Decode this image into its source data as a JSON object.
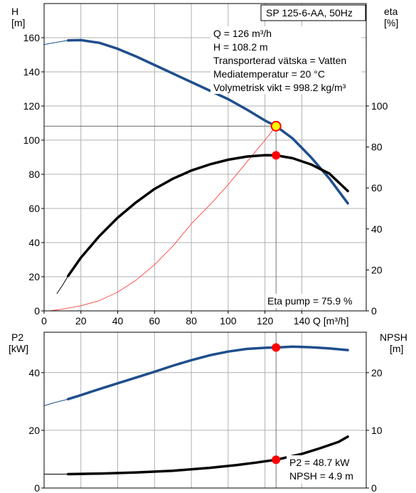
{
  "chart_data": [
    {
      "type": "line",
      "title": "SP 125-6-AA, 50Hz",
      "xlabel": "Q [m³/h]",
      "ylabel": [
        "H",
        "[m]"
      ],
      "y2label": [
        "eta",
        "[%]"
      ],
      "xlim": [
        0,
        175
      ],
      "ylim": [
        0,
        180
      ],
      "y2lim": [
        0,
        150
      ],
      "xticks": [
        0,
        20,
        40,
        60,
        80,
        100,
        120,
        140
      ],
      "yticks": [
        0,
        20,
        40,
        60,
        80,
        100,
        120,
        140,
        160
      ],
      "y2ticks": [
        0,
        20,
        40,
        60,
        80,
        100
      ],
      "grid": true,
      "info_lines": [
        "Q = 126 m³/h",
        "H = 108.2 m",
        "Transporterad vätska = Vatten",
        "Mediatemperatur = 20 °C",
        "Volymetrisk vikt = 998.2 kg/m³"
      ],
      "eta_label": "Eta pump = 75.9 %",
      "duty_point": {
        "Q": 126,
        "H": 108.2,
        "eta": 75.9
      },
      "colors": {
        "head": "#1f4e8c",
        "eta": "#000000",
        "system": "#ff4040",
        "marker": "#ff0000",
        "marker_yellow": "#ffff00",
        "grid": "#b0b0b0"
      },
      "series": [
        {
          "key": "head_thin",
          "axis": "left",
          "points": [
            [
              0,
              156
            ],
            [
              5,
              157
            ],
            [
              13,
              158.4
            ]
          ]
        },
        {
          "key": "head",
          "axis": "left",
          "points": [
            [
              13,
              158.4
            ],
            [
              20,
              158.6
            ],
            [
              30,
              157
            ],
            [
              40,
              153.5
            ],
            [
              50,
              149
            ],
            [
              60,
              144
            ],
            [
              70,
              139
            ],
            [
              80,
              134
            ],
            [
              90,
              129
            ],
            [
              100,
              124
            ],
            [
              110,
              118
            ],
            [
              120,
              111.5
            ],
            [
              126,
              108.2
            ],
            [
              135,
              101
            ],
            [
              145,
              90
            ],
            [
              155,
              77.5
            ],
            [
              165,
              63
            ]
          ]
        },
        {
          "key": "eta_thin",
          "axis": "right",
          "points": [
            [
              7,
              8.5
            ],
            [
              10,
              12.5
            ],
            [
              13,
              17
            ]
          ]
        },
        {
          "key": "eta",
          "axis": "right",
          "points": [
            [
              13,
              17
            ],
            [
              20,
              26
            ],
            [
              30,
              36.5
            ],
            [
              40,
              45.5
            ],
            [
              50,
              53
            ],
            [
              60,
              59.5
            ],
            [
              70,
              64.5
            ],
            [
              80,
              68.5
            ],
            [
              90,
              71.5
            ],
            [
              100,
              73.8
            ],
            [
              110,
              75.3
            ],
            [
              120,
              76
            ],
            [
              126,
              75.9
            ],
            [
              135,
              74.5
            ],
            [
              145,
              71.5
            ],
            [
              155,
              67
            ],
            [
              165,
              58.5
            ]
          ]
        },
        {
          "key": "system",
          "axis": "left",
          "points": [
            [
              3,
              0
            ],
            [
              10,
              1
            ],
            [
              20,
              3
            ],
            [
              30,
              6
            ],
            [
              40,
              11
            ],
            [
              50,
              18
            ],
            [
              60,
              27
            ],
            [
              70,
              38
            ],
            [
              80,
              51
            ],
            [
              90,
              62
            ],
            [
              100,
              74
            ],
            [
              110,
              87
            ],
            [
              120,
              100
            ],
            [
              126,
              108.2
            ]
          ]
        }
      ]
    },
    {
      "type": "line",
      "xlim": [
        0,
        175
      ],
      "ylim": [
        0,
        54
      ],
      "y2lim": [
        0,
        27
      ],
      "yticks": [
        0,
        20,
        40
      ],
      "y2ticks": [
        0,
        10,
        20
      ],
      "xticks": [
        0,
        20,
        40,
        60,
        80,
        100,
        120,
        140
      ],
      "ylabel": [
        "P2",
        "[kW]"
      ],
      "y2label": [
        "NPSH",
        "[m]"
      ],
      "grid": true,
      "info_lines": [
        "P2 = 48.7 kW",
        "NPSH = 4.9 m"
      ],
      "duty_point": {
        "Q": 126,
        "P2": 48.7,
        "NPSH": 4.9
      },
      "series": [
        {
          "key": "p2_thin",
          "axis": "left",
          "points": [
            [
              0,
              28.5
            ],
            [
              5,
              29.5
            ],
            [
              13,
              30.8
            ]
          ]
        },
        {
          "key": "p2",
          "axis": "left",
          "points": [
            [
              13,
              30.8
            ],
            [
              20,
              32.2
            ],
            [
              30,
              34.3
            ],
            [
              40,
              36.3
            ],
            [
              50,
              38.3
            ],
            [
              60,
              40.3
            ],
            [
              70,
              42.4
            ],
            [
              80,
              44.3
            ],
            [
              90,
              46
            ],
            [
              100,
              47.3
            ],
            [
              110,
              48.2
            ],
            [
              120,
              48.6
            ],
            [
              126,
              48.7
            ],
            [
              135,
              49
            ],
            [
              145,
              48.8
            ],
            [
              155,
              48.4
            ],
            [
              165,
              47.8
            ]
          ]
        },
        {
          "key": "npsh_thin",
          "axis": "right",
          "points": [
            [
              0,
              2.4
            ],
            [
              13,
              2.4
            ]
          ]
        },
        {
          "key": "npsh",
          "axis": "right",
          "points": [
            [
              13,
              2.4
            ],
            [
              30,
              2.5
            ],
            [
              50,
              2.7
            ],
            [
              70,
              3.0
            ],
            [
              90,
              3.5
            ],
            [
              105,
              4.0
            ],
            [
              115,
              4.4
            ],
            [
              126,
              4.9
            ],
            [
              140,
              5.9
            ],
            [
              150,
              6.9
            ],
            [
              160,
              8.0
            ],
            [
              165,
              8.9
            ]
          ]
        }
      ]
    }
  ]
}
